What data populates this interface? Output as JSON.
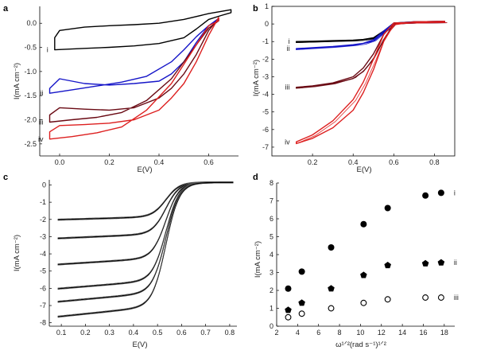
{
  "chart_data": [
    {
      "panel": "a",
      "type": "line",
      "xlabel": "E(V)",
      "ylabel": "I(mA cm⁻²)",
      "xlim": [
        -0.08,
        0.72
      ],
      "ylim": [
        -2.75,
        0.35
      ],
      "xticks": [
        "0.0",
        "0.2",
        "0.4",
        "0.6"
      ],
      "yticks": [
        "0.0",
        "-0.5",
        "-1.0",
        "-1.5",
        "-2.0",
        "-2.5"
      ],
      "series": [
        {
          "label": "i",
          "color": "#000000",
          "forward": [
            [
              -0.02,
              -0.55
            ],
            [
              0.1,
              -0.52
            ],
            [
              0.2,
              -0.5
            ],
            [
              0.3,
              -0.47
            ],
            [
              0.4,
              -0.42
            ],
            [
              0.5,
              -0.3
            ],
            [
              0.55,
              -0.12
            ],
            [
              0.6,
              0.08
            ],
            [
              0.65,
              0.16
            ],
            [
              0.69,
              0.22
            ]
          ],
          "backward": [
            [
              0.69,
              0.28
            ],
            [
              0.6,
              0.2
            ],
            [
              0.5,
              0.08
            ],
            [
              0.4,
              0.0
            ],
            [
              0.3,
              -0.03
            ],
            [
              0.2,
              -0.05
            ],
            [
              0.1,
              -0.08
            ],
            [
              0.0,
              -0.15
            ],
            [
              -0.02,
              -0.3
            ]
          ]
        },
        {
          "label": "ii",
          "color": "#1515c8",
          "forward": [
            [
              -0.04,
              -1.45
            ],
            [
              0.05,
              -1.38
            ],
            [
              0.15,
              -1.3
            ],
            [
              0.25,
              -1.22
            ],
            [
              0.35,
              -1.1
            ],
            [
              0.45,
              -0.8
            ],
            [
              0.5,
              -0.55
            ],
            [
              0.55,
              -0.28
            ],
            [
              0.6,
              -0.05
            ],
            [
              0.64,
              0.07
            ]
          ],
          "backward": [
            [
              0.64,
              0.1
            ],
            [
              0.6,
              -0.05
            ],
            [
              0.55,
              -0.4
            ],
            [
              0.5,
              -0.8
            ],
            [
              0.45,
              -1.05
            ],
            [
              0.4,
              -1.2
            ],
            [
              0.3,
              -1.25
            ],
            [
              0.2,
              -1.28
            ],
            [
              0.1,
              -1.25
            ],
            [
              0.0,
              -1.15
            ],
            [
              -0.04,
              -1.35
            ]
          ]
        },
        {
          "label": "iii",
          "color": "#6a0a14",
          "forward": [
            [
              -0.04,
              -2.05
            ],
            [
              0.05,
              -2.0
            ],
            [
              0.15,
              -1.95
            ],
            [
              0.25,
              -1.85
            ],
            [
              0.35,
              -1.6
            ],
            [
              0.45,
              -1.15
            ],
            [
              0.5,
              -0.8
            ],
            [
              0.55,
              -0.45
            ],
            [
              0.6,
              -0.1
            ],
            [
              0.64,
              0.05
            ]
          ],
          "backward": [
            [
              0.64,
              0.1
            ],
            [
              0.6,
              -0.15
            ],
            [
              0.55,
              -0.65
            ],
            [
              0.5,
              -1.05
            ],
            [
              0.45,
              -1.35
            ],
            [
              0.4,
              -1.55
            ],
            [
              0.3,
              -1.75
            ],
            [
              0.2,
              -1.8
            ],
            [
              0.1,
              -1.78
            ],
            [
              0.0,
              -1.75
            ],
            [
              -0.04,
              -1.9
            ]
          ]
        },
        {
          "label": "iv",
          "color": "#dd1f1f",
          "forward": [
            [
              -0.04,
              -2.4
            ],
            [
              0.05,
              -2.35
            ],
            [
              0.15,
              -2.27
            ],
            [
              0.25,
              -2.15
            ],
            [
              0.35,
              -1.8
            ],
            [
              0.45,
              -1.25
            ],
            [
              0.5,
              -0.85
            ],
            [
              0.55,
              -0.45
            ],
            [
              0.6,
              -0.05
            ],
            [
              0.64,
              0.05
            ]
          ],
          "backward": [
            [
              0.64,
              0.12
            ],
            [
              0.6,
              -0.25
            ],
            [
              0.55,
              -0.8
            ],
            [
              0.5,
              -1.25
            ],
            [
              0.45,
              -1.55
            ],
            [
              0.4,
              -1.8
            ],
            [
              0.3,
              -2.0
            ],
            [
              0.2,
              -2.07
            ],
            [
              0.1,
              -2.1
            ],
            [
              0.0,
              -2.12
            ],
            [
              -0.04,
              -2.25
            ]
          ]
        }
      ]
    },
    {
      "panel": "b",
      "type": "line",
      "xlabel": "E(V)",
      "ylabel": "I(mA cm⁻²)",
      "xlim": [
        0.0,
        0.9
      ],
      "ylim": [
        -7.5,
        1.0
      ],
      "xticks": [
        "0.2",
        "0.4",
        "0.6",
        "0.8"
      ],
      "yticks": [
        "1",
        "0",
        "-1",
        "-2",
        "-3",
        "-4",
        "-5",
        "-6",
        "-7"
      ],
      "series": [
        {
          "label": "i",
          "color": "#000000",
          "forward": [
            [
              0.12,
              -1.0
            ],
            [
              0.2,
              -0.98
            ],
            [
              0.3,
              -0.95
            ],
            [
              0.4,
              -0.92
            ],
            [
              0.45,
              -0.88
            ],
            [
              0.5,
              -0.78
            ],
            [
              0.55,
              -0.4
            ],
            [
              0.6,
              0.05
            ],
            [
              0.7,
              0.1
            ],
            [
              0.85,
              0.12
            ]
          ],
          "backward": [
            [
              0.85,
              0.15
            ],
            [
              0.7,
              0.12
            ],
            [
              0.6,
              0.05
            ],
            [
              0.55,
              -0.45
            ],
            [
              0.5,
              -0.82
            ],
            [
              0.4,
              -0.95
            ],
            [
              0.3,
              -0.98
            ],
            [
              0.2,
              -1.02
            ],
            [
              0.12,
              -1.05
            ]
          ]
        },
        {
          "label": "ii",
          "color": "#1515c8",
          "forward": [
            [
              0.12,
              -1.4
            ],
            [
              0.2,
              -1.35
            ],
            [
              0.3,
              -1.28
            ],
            [
              0.4,
              -1.18
            ],
            [
              0.45,
              -1.1
            ],
            [
              0.5,
              -0.9
            ],
            [
              0.55,
              -0.4
            ],
            [
              0.6,
              0.05
            ],
            [
              0.7,
              0.1
            ],
            [
              0.85,
              0.12
            ]
          ],
          "backward": [
            [
              0.85,
              0.15
            ],
            [
              0.7,
              0.12
            ],
            [
              0.6,
              0.05
            ],
            [
              0.55,
              -0.5
            ],
            [
              0.5,
              -0.98
            ],
            [
              0.4,
              -1.22
            ],
            [
              0.3,
              -1.3
            ],
            [
              0.2,
              -1.38
            ],
            [
              0.12,
              -1.45
            ]
          ]
        },
        {
          "label": "iii",
          "color": "#6a0a14",
          "forward": [
            [
              0.12,
              -3.6
            ],
            [
              0.2,
              -3.52
            ],
            [
              0.3,
              -3.35
            ],
            [
              0.4,
              -3.0
            ],
            [
              0.45,
              -2.5
            ],
            [
              0.5,
              -1.7
            ],
            [
              0.55,
              -0.6
            ],
            [
              0.6,
              0.05
            ],
            [
              0.7,
              0.1
            ],
            [
              0.85,
              0.12
            ]
          ],
          "backward": [
            [
              0.85,
              0.15
            ],
            [
              0.7,
              0.12
            ],
            [
              0.6,
              0.0
            ],
            [
              0.55,
              -0.9
            ],
            [
              0.5,
              -2.0
            ],
            [
              0.45,
              -2.7
            ],
            [
              0.4,
              -3.1
            ],
            [
              0.3,
              -3.4
            ],
            [
              0.2,
              -3.55
            ],
            [
              0.12,
              -3.65
            ]
          ]
        },
        {
          "label": "iv",
          "color": "#dd1f1f",
          "forward": [
            [
              0.12,
              -6.7
            ],
            [
              0.2,
              -6.3
            ],
            [
              0.3,
              -5.5
            ],
            [
              0.4,
              -4.3
            ],
            [
              0.45,
              -3.3
            ],
            [
              0.5,
              -2.0
            ],
            [
              0.55,
              -0.6
            ],
            [
              0.6,
              0.05
            ],
            [
              0.7,
              0.1
            ],
            [
              0.85,
              0.12
            ]
          ],
          "backward": [
            [
              0.85,
              0.15
            ],
            [
              0.7,
              0.12
            ],
            [
              0.6,
              -0.05
            ],
            [
              0.55,
              -1.0
            ],
            [
              0.5,
              -2.6
            ],
            [
              0.45,
              -3.9
            ],
            [
              0.4,
              -4.9
            ],
            [
              0.3,
              -5.9
            ],
            [
              0.2,
              -6.5
            ],
            [
              0.12,
              -6.8
            ]
          ]
        }
      ]
    },
    {
      "panel": "c",
      "type": "line",
      "xlabel": "E(V)",
      "ylabel": "I(mA cm⁻²)",
      "xlim": [
        0.05,
        0.83
      ],
      "ylim": [
        -8.2,
        0.3
      ],
      "xticks": [
        "0.1",
        "0.2",
        "0.3",
        "0.4",
        "0.5",
        "0.6",
        "0.7",
        "0.8"
      ],
      "yticks": [
        "0",
        "-1",
        "-2",
        "-3",
        "-4",
        "-5",
        "-6",
        "-7",
        "-8"
      ],
      "limiting_currents": [
        -2.0,
        -3.0,
        -4.4,
        -5.7,
        -6.4,
        -7.2
      ]
    },
    {
      "panel": "d",
      "type": "scatter",
      "xlabel": "ω¹ᐟ²(rad s⁻¹)¹ᐟ²",
      "ylabel": "I(mA cm⁻²)",
      "xlim": [
        2,
        19
      ],
      "ylim": [
        0,
        8
      ],
      "xticks": [
        "2",
        "4",
        "6",
        "8",
        "10",
        "12",
        "14",
        "16",
        "18"
      ],
      "yticks": [
        "0",
        "1",
        "2",
        "3",
        "4",
        "5",
        "6",
        "7",
        "8"
      ],
      "series": [
        {
          "label": "i",
          "marker": "filled-circle",
          "points": [
            [
              3.1,
              2.1
            ],
            [
              4.4,
              3.05
            ],
            [
              7.2,
              4.4
            ],
            [
              10.3,
              5.7
            ],
            [
              12.6,
              6.6
            ],
            [
              16.2,
              7.3
            ],
            [
              17.7,
              7.45
            ]
          ]
        },
        {
          "label": "ii",
          "marker": "filled-pentagon",
          "points": [
            [
              3.1,
              0.9
            ],
            [
              4.4,
              1.3
            ],
            [
              7.2,
              2.1
            ],
            [
              10.3,
              2.85
            ],
            [
              12.6,
              3.4
            ],
            [
              16.2,
              3.5
            ],
            [
              17.7,
              3.55
            ]
          ]
        },
        {
          "label": "iii",
          "marker": "open-circle",
          "points": [
            [
              3.1,
              0.5
            ],
            [
              4.4,
              0.7
            ],
            [
              7.2,
              1.0
            ],
            [
              10.3,
              1.3
            ],
            [
              12.6,
              1.5
            ],
            [
              16.2,
              1.6
            ],
            [
              17.7,
              1.6
            ]
          ]
        }
      ]
    }
  ]
}
